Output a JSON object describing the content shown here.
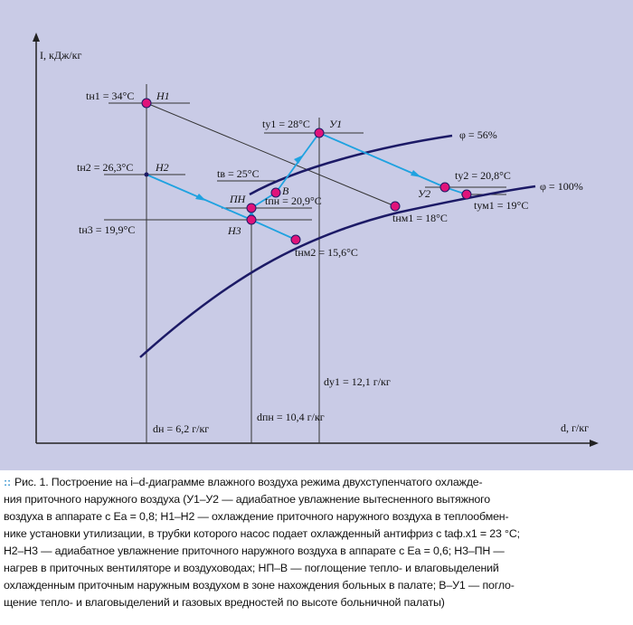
{
  "axes": {
    "y_label": "I, кДж/кг",
    "x_label": "d, г/кг"
  },
  "curves": {
    "phi56": "φ = 56%",
    "phi100": "φ = 100%"
  },
  "points": {
    "H1": {
      "name": "Н1",
      "t": "tн1 = 34°C"
    },
    "H2": {
      "name": "Н2",
      "t": "tн2 = 26,3°C"
    },
    "H3": {
      "name": "Н3",
      "t": "tн3 = 19,9°C"
    },
    "PN": {
      "name": "ПН",
      "t": "tпн = 20,9°C"
    },
    "B": {
      "name": "В",
      "t": "tв = 25°C"
    },
    "U1": {
      "name": "У1",
      "t": "tу1 = 28°C"
    },
    "U2": {
      "name": "У2",
      "t": "tу2 = 20,8°C"
    },
    "UM1": {
      "t": "tум1 = 19°C"
    },
    "NM1": {
      "t": "tнм1 = 18°C"
    },
    "NM2": {
      "t": "tнм2 = 15,6°C"
    }
  },
  "d_labels": {
    "dn": "dн = 6,2 г/кг",
    "dpn": "dпн = 10,4 г/кг",
    "du1": "dу1 = 12,1 г/кг"
  },
  "colors": {
    "background": "#c9cbe6",
    "point": "#e0137a",
    "process_line": "#1fa2e0",
    "curve": "#1c1a66",
    "caption_marker": "#4a9fd4"
  },
  "caption": {
    "marker": "::",
    "lines": [
      "Рис. 1. Построение на i–d-диаграмме влажного воздуха режима двухступенчатого охлажде-",
      "ния приточного наружного воздуха (У1–У2 — адиабатное увлажнение вытесненного вытяжного",
      "воздуха в аппарате с Ea = 0,8; Н1–Н2 — охлаждение приточного наружного воздуха в теплообмен-",
      "нике установки утилизации, в трубки которого насос подает охлажденный антифриз с tаф.х1 = 23 °C;",
      "Н2–Н3 — адиабатное увлажнение приточного наружного воздуха в аппарате с Ea = 0,6; Н3–ПН —",
      "нагрев в приточных вентиляторе и воздуховодах; НП–В — поглощение тепло- и влаговыделений",
      "охлажденным приточным наружным воздухом в зоне нахождения больных в палате; В–У1 — погло-",
      "щение тепло- и влаговыделений и газовых вредностей по высоте больничной палаты)"
    ]
  }
}
